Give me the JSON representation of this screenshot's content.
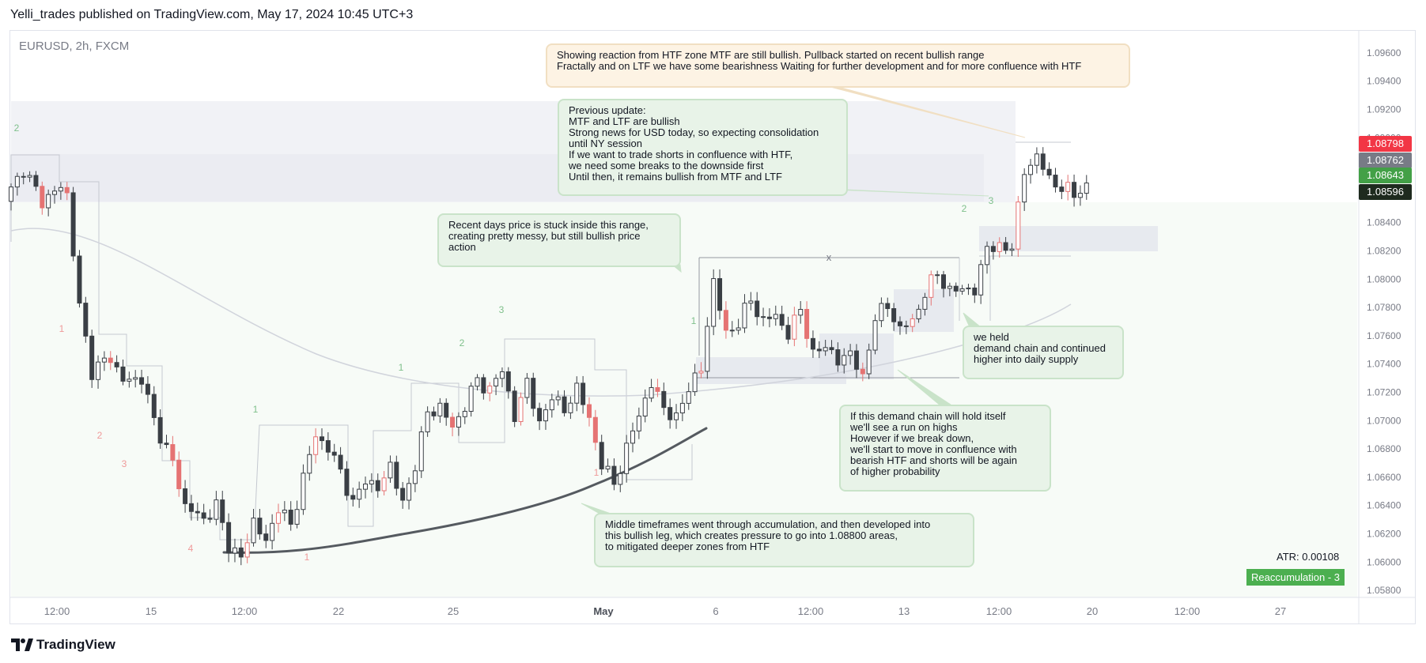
{
  "header": {
    "published_line": "Yelli_trades published on TradingView.com, May 17, 2024 10:45 UTC+3"
  },
  "symbol_line": "EURUSD, 2h, FXCM",
  "chart_data": {
    "type": "candlestick",
    "symbol": "EURUSD",
    "timeframe": "2h",
    "ylim": [
      1.0575,
      1.0975
    ],
    "y_ticks": [
      "1.09600",
      "1.09400",
      "1.09200",
      "1.09000",
      "1.08800",
      "1.08600",
      "1.08400",
      "1.08200",
      "1.08000",
      "1.07800",
      "1.07600",
      "1.07400",
      "1.07200",
      "1.07000",
      "1.06800",
      "1.06600",
      "1.06400",
      "1.06200",
      "1.06000",
      "1.05800"
    ],
    "x_ticks": [
      "12:00",
      "15",
      "12:00",
      "22",
      "25",
      "May",
      "6",
      "12:00",
      "13",
      "12:00",
      "20",
      "12:00",
      "27"
    ],
    "price_tags": [
      {
        "value": "1.08798",
        "color": "#f23645"
      },
      {
        "value": "1.08762",
        "color": "#787b86"
      },
      {
        "value": "1.08643",
        "color": "#43a047"
      },
      {
        "value": "1.08596",
        "color": "#1e2a1e"
      }
    ],
    "price_path_anchors": [
      [
        0,
        1.0855
      ],
      [
        3,
        1.0878
      ],
      [
        6,
        1.0855
      ],
      [
        9,
        1.0865
      ],
      [
        10,
        1.086
      ],
      [
        12,
        1.078
      ],
      [
        14,
        1.0735
      ],
      [
        17,
        1.0745
      ],
      [
        19,
        1.0728
      ],
      [
        22,
        1.073
      ],
      [
        24,
        1.07
      ],
      [
        27,
        1.067
      ],
      [
        29,
        1.064
      ],
      [
        32,
        1.063
      ],
      [
        34,
        1.064
      ],
      [
        36,
        1.0612
      ],
      [
        38,
        1.0602
      ],
      [
        40,
        1.063
      ],
      [
        42,
        1.0613
      ],
      [
        44,
        1.064
      ],
      [
        46,
        1.0625
      ],
      [
        48,
        1.066
      ],
      [
        50,
        1.069
      ],
      [
        52,
        1.068
      ],
      [
        54,
        1.0665
      ],
      [
        56,
        1.064
      ],
      [
        58,
        1.066
      ],
      [
        60,
        1.065
      ],
      [
        62,
        1.067
      ],
      [
        64,
        1.064
      ],
      [
        66,
        1.067
      ],
      [
        68,
        1.0705
      ],
      [
        70,
        1.071
      ],
      [
        72,
        1.0695
      ],
      [
        74,
        1.071
      ],
      [
        76,
        1.073
      ],
      [
        78,
        1.072
      ],
      [
        80,
        1.0738
      ],
      [
        82,
        1.07
      ],
      [
        84,
        1.073
      ],
      [
        86,
        1.0695
      ],
      [
        88,
        1.072
      ],
      [
        90,
        1.0705
      ],
      [
        92,
        1.0725
      ],
      [
        94,
        1.07
      ],
      [
        96,
        1.067
      ],
      [
        98,
        1.0655
      ],
      [
        100,
        1.068
      ],
      [
        102,
        1.0705
      ],
      [
        104,
        1.0725
      ],
      [
        106,
        1.071
      ],
      [
        108,
        1.07
      ],
      [
        110,
        1.0725
      ],
      [
        112,
        1.0735
      ],
      [
        114,
        1.08
      ],
      [
        116,
        1.076
      ],
      [
        118,
        1.077
      ],
      [
        120,
        1.0785
      ],
      [
        122,
        1.077
      ],
      [
        124,
        1.0775
      ],
      [
        126,
        1.076
      ],
      [
        128,
        1.078
      ],
      [
        130,
        1.0745
      ],
      [
        132,
        1.0755
      ],
      [
        134,
        1.074
      ],
      [
        136,
        1.075
      ],
      [
        138,
        1.0728
      ],
      [
        140,
        1.0775
      ],
      [
        142,
        1.078
      ],
      [
        144,
        1.0765
      ],
      [
        146,
        1.077
      ],
      [
        148,
        1.079
      ],
      [
        150,
        1.0805
      ],
      [
        152,
        1.079
      ],
      [
        154,
        1.0795
      ],
      [
        156,
        1.079
      ],
      [
        158,
        1.0825
      ],
      [
        160,
        1.082
      ],
      [
        162,
        1.0825
      ],
      [
        164,
        1.0875
      ],
      [
        166,
        1.0888
      ],
      [
        168,
        1.087
      ],
      [
        170,
        1.0865
      ],
      [
        172,
        1.086
      ],
      [
        173,
        1.0864
      ]
    ],
    "wave_labels": [
      {
        "text": "2",
        "color": "#7fc08b"
      },
      {
        "text": "1",
        "color": "#ef9a9a"
      },
      {
        "text": "2",
        "color": "#ef9a9a"
      },
      {
        "text": "3",
        "color": "#ef9a9a"
      },
      {
        "text": "4",
        "color": "#ef9a9a"
      },
      {
        "text": "1",
        "color": "#7fc08b"
      },
      {
        "text": "1",
        "color": "#ef9a9a"
      },
      {
        "text": "1",
        "color": "#7fc08b"
      },
      {
        "text": "2",
        "color": "#7fc08b"
      },
      {
        "text": "3",
        "color": "#7fc08b"
      },
      {
        "text": "1",
        "color": "#ef9a9a"
      },
      {
        "text": "1",
        "color": "#7fc08b"
      },
      {
        "text": "2",
        "color": "#7fc08b"
      },
      {
        "text": "3",
        "color": "#7fc08b"
      }
    ],
    "range_marker": "x",
    "atr": "ATR: 0.00108",
    "indicator_badge": "Reaccumulation - 3"
  },
  "notes": {
    "htf_reaction": "Showing reaction from HTF zone MTF are still bullish. Pullback started on recent bullish range\nFractally and on LTF we have some bearishness Waiting for further development and for more confluence with HTF",
    "previous_update": "Previous update:\nMTF and LTF are bullish\nStrong news for USD today, so expecting consolidation\nuntil NY session\nIf we want to trade shorts in confluence with HTF,\nwe need some breaks to the downside first\nUntil then, it remains bullish from MTF and LTF",
    "range_stuck": "Recent days price is stuck inside this range,\ncreating pretty messy, but still bullish price\naction",
    "held_demand": " we held\ndemand chain and continued\nhigher into daily supply",
    "demand_chain": "If this demand chain will hold itself\nwe'll see a run on highs\nHowever if we break down,\nwe'll start to move in confluence with\nbearish HTF and shorts will be again\nof higher probability",
    "accumulation": "Middle timeframes went through accumulation, and then developed into\nthis bullish leg, which creates pressure to go into 1.08800 areas,\nto mitigated deeper zones from HTF"
  },
  "footer": {
    "brand": "TradingView",
    "logo_icon": "tradingview-logo-icon"
  }
}
